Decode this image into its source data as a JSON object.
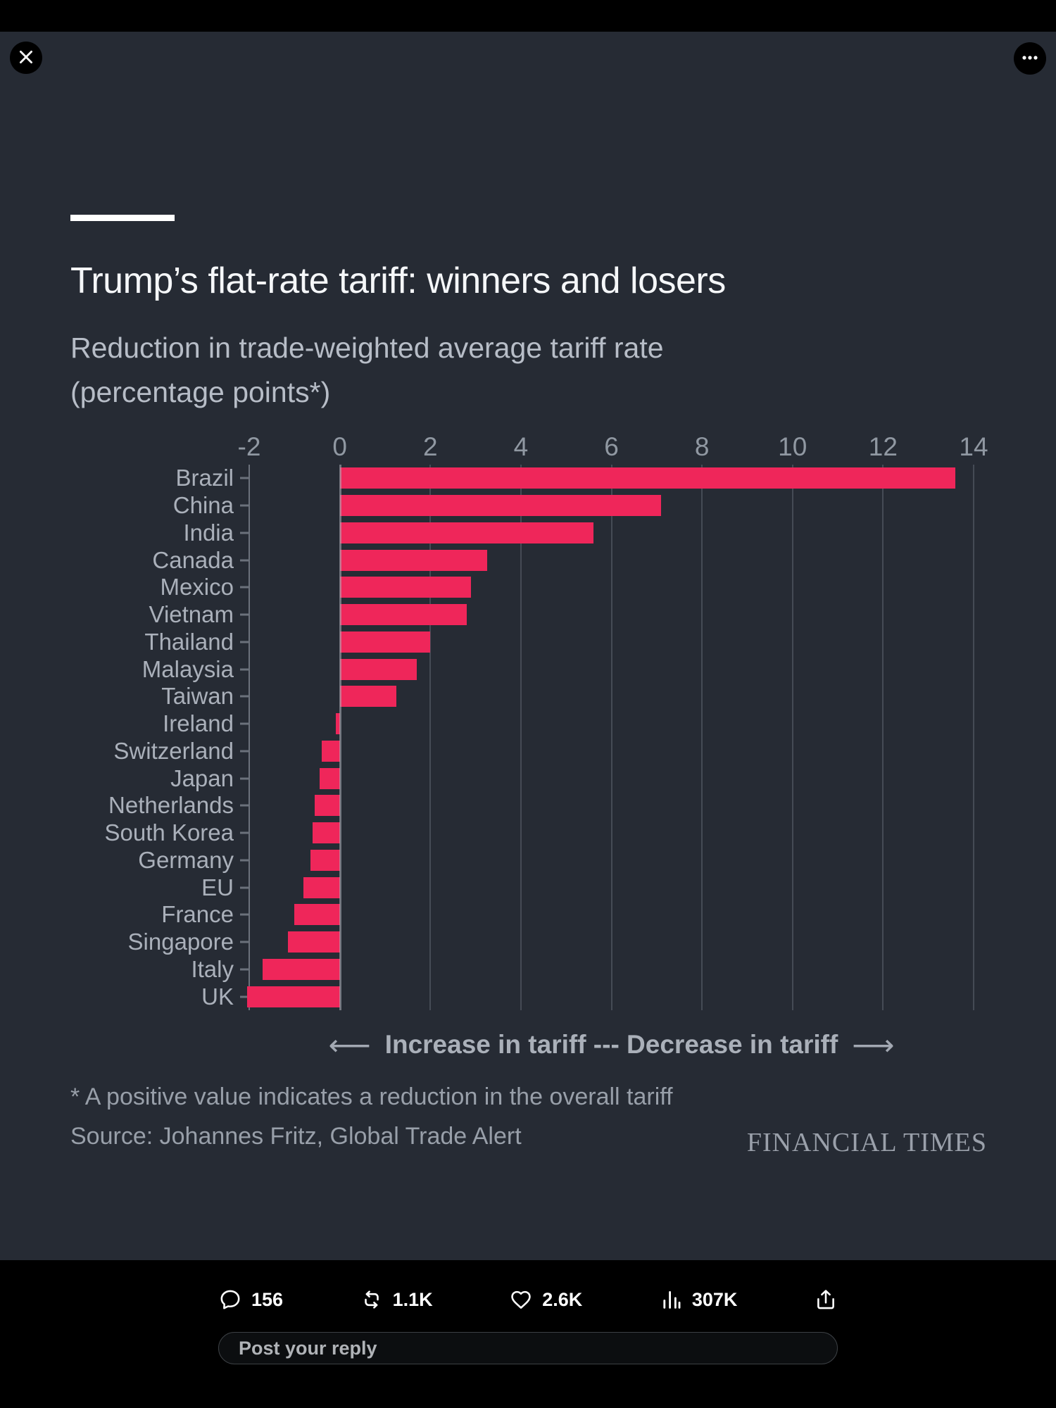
{
  "viewer": {
    "close_icon": "close-icon",
    "more_icon": "more-icon"
  },
  "chart": {
    "title": "Trump’s flat-rate tariff: winners and losers",
    "subtitle_line1": "Reduction in trade-weighted average tariff rate",
    "subtitle_line2": "(percentage points*)",
    "legend_left_arrow": "⟵",
    "legend_text": "Increase in tariff --- Decrease in tariff",
    "legend_right_arrow": "⟶",
    "footnote": "* A positive value indicates a reduction in the overall tariff",
    "source": "Source: Johannes Fritz, Global Trade Alert",
    "brand": "FINANCIAL TIMES"
  },
  "chart_data": {
    "type": "bar",
    "orientation": "horizontal",
    "title": "Trump’s flat-rate tariff: winners and losers",
    "subtitle": "Reduction in trade-weighted average tariff rate (percentage points*)",
    "categories": [
      "Brazil",
      "China",
      "India",
      "Canada",
      "Mexico",
      "Vietnam",
      "Thailand",
      "Malaysia",
      "Taiwan",
      "Ireland",
      "Switzerland",
      "Japan",
      "Netherlands",
      "South Korea",
      "Germany",
      "EU",
      "France",
      "Singapore",
      "Italy",
      "UK"
    ],
    "values": [
      13.6,
      7.1,
      5.6,
      3.25,
      2.9,
      2.8,
      2.0,
      1.7,
      1.25,
      -0.08,
      -0.4,
      -0.45,
      -0.55,
      -0.6,
      -0.65,
      -0.8,
      -1.0,
      -1.15,
      -1.7,
      -2.05
    ],
    "x_ticks": [
      -2,
      0,
      2,
      4,
      6,
      8,
      10,
      12,
      14
    ],
    "xlim": [
      -2,
      14
    ],
    "grid": true,
    "legend_position": "bottom",
    "bar_color": "#ef265a",
    "background_color": "#262b34",
    "grid_color": "#454b55",
    "zero_line_color": "#aab0ba"
  },
  "actions": {
    "reply_count": "156",
    "repost_count": "1.1K",
    "like_count": "2.6K",
    "view_count": "307K"
  },
  "composer": {
    "placeholder": "Post your reply"
  }
}
